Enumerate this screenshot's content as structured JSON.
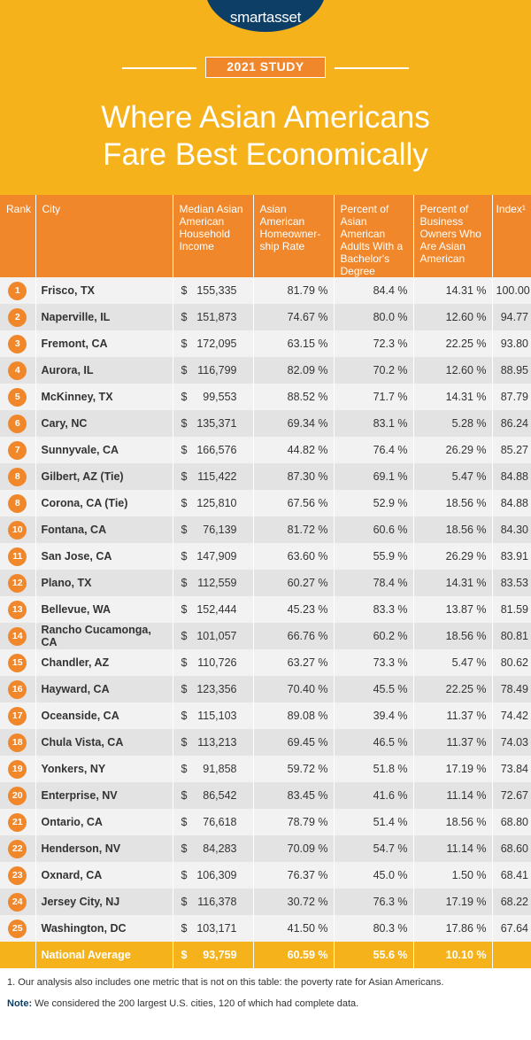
{
  "header": {
    "logo": "smartasset",
    "study_label": "2021 STUDY",
    "title_line1": "Where Asian Americans",
    "title_line2": "Fare Best Economically"
  },
  "colors": {
    "header_bg": "#f6b21a",
    "accent": "#f1872b",
    "logo_bg": "#0d3e66"
  },
  "chart_data": {
    "type": "table",
    "title": "Where Asian Americans Fare Best Economically",
    "columns": [
      "Rank",
      "City",
      "Median Asian American Household Income",
      "Asian American Homeowner-ship Rate",
      "Percent of Asian American Adults With a Bachelor's Degree",
      "Percent of Business Owners Who Are Asian American",
      "Index¹"
    ],
    "rows": [
      {
        "rank": "1",
        "city": "Frisco, TX",
        "income": "155,335",
        "home": "81.79 %",
        "bach": "84.4 %",
        "biz": "14.31 %",
        "index": "100.00"
      },
      {
        "rank": "2",
        "city": "Naperville, IL",
        "income": "151,873",
        "home": "74.67 %",
        "bach": "80.0 %",
        "biz": "12.60 %",
        "index": "94.77"
      },
      {
        "rank": "3",
        "city": "Fremont, CA",
        "income": "172,095",
        "home": "63.15 %",
        "bach": "72.3 %",
        "biz": "22.25 %",
        "index": "93.80"
      },
      {
        "rank": "4",
        "city": "Aurora, IL",
        "income": "116,799",
        "home": "82.09 %",
        "bach": "70.2 %",
        "biz": "12.60 %",
        "index": "88.95"
      },
      {
        "rank": "5",
        "city": "McKinney, TX",
        "income": "99,553",
        "home": "88.52 %",
        "bach": "71.7 %",
        "biz": "14.31 %",
        "index": "87.79"
      },
      {
        "rank": "6",
        "city": "Cary, NC",
        "income": "135,371",
        "home": "69.34 %",
        "bach": "83.1 %",
        "biz": "5.28 %",
        "index": "86.24"
      },
      {
        "rank": "7",
        "city": "Sunnyvale, CA",
        "income": "166,576",
        "home": "44.82 %",
        "bach": "76.4 %",
        "biz": "26.29 %",
        "index": "85.27"
      },
      {
        "rank": "8",
        "city": "Gilbert, AZ (Tie)",
        "income": "115,422",
        "home": "87.30 %",
        "bach": "69.1 %",
        "biz": "5.47 %",
        "index": "84.88"
      },
      {
        "rank": "8",
        "city": "Corona, CA (Tie)",
        "income": "125,810",
        "home": "67.56 %",
        "bach": "52.9 %",
        "biz": "18.56 %",
        "index": "84.88"
      },
      {
        "rank": "10",
        "city": "Fontana, CA",
        "income": "76,139",
        "home": "81.72 %",
        "bach": "60.6 %",
        "biz": "18.56 %",
        "index": "84.30"
      },
      {
        "rank": "11",
        "city": "San Jose, CA",
        "income": "147,909",
        "home": "63.60 %",
        "bach": "55.9 %",
        "biz": "26.29 %",
        "index": "83.91"
      },
      {
        "rank": "12",
        "city": "Plano, TX",
        "income": "112,559",
        "home": "60.27 %",
        "bach": "78.4 %",
        "biz": "14.31 %",
        "index": "83.53"
      },
      {
        "rank": "13",
        "city": "Bellevue, WA",
        "income": "152,444",
        "home": "45.23 %",
        "bach": "83.3 %",
        "biz": "13.87 %",
        "index": "81.59"
      },
      {
        "rank": "14",
        "city": "Rancho Cucamonga, CA",
        "income": "101,057",
        "home": "66.76 %",
        "bach": "60.2 %",
        "biz": "18.56 %",
        "index": "80.81"
      },
      {
        "rank": "15",
        "city": "Chandler, AZ",
        "income": "110,726",
        "home": "63.27 %",
        "bach": "73.3 %",
        "biz": "5.47 %",
        "index": "80.62"
      },
      {
        "rank": "16",
        "city": "Hayward, CA",
        "income": "123,356",
        "home": "70.40 %",
        "bach": "45.5 %",
        "biz": "22.25 %",
        "index": "78.49"
      },
      {
        "rank": "17",
        "city": "Oceanside, CA",
        "income": "115,103",
        "home": "89.08 %",
        "bach": "39.4 %",
        "biz": "11.37 %",
        "index": "74.42"
      },
      {
        "rank": "18",
        "city": "Chula Vista, CA",
        "income": "113,213",
        "home": "69.45 %",
        "bach": "46.5 %",
        "biz": "11.37 %",
        "index": "74.03"
      },
      {
        "rank": "19",
        "city": "Yonkers, NY",
        "income": "91,858",
        "home": "59.72 %",
        "bach": "51.8 %",
        "biz": "17.19 %",
        "index": "73.84"
      },
      {
        "rank": "20",
        "city": "Enterprise, NV",
        "income": "86,542",
        "home": "83.45 %",
        "bach": "41.6 %",
        "biz": "11.14 %",
        "index": "72.67"
      },
      {
        "rank": "21",
        "city": "Ontario, CA",
        "income": "76,618",
        "home": "78.79 %",
        "bach": "51.4 %",
        "biz": "18.56 %",
        "index": "68.80"
      },
      {
        "rank": "22",
        "city": "Henderson, NV",
        "income": "84,283",
        "home": "70.09 %",
        "bach": "54.7 %",
        "biz": "11.14 %",
        "index": "68.60"
      },
      {
        "rank": "23",
        "city": "Oxnard, CA",
        "income": "106,309",
        "home": "76.37 %",
        "bach": "45.0 %",
        "biz": "1.50 %",
        "index": "68.41"
      },
      {
        "rank": "24",
        "city": "Jersey City, NJ",
        "income": "116,378",
        "home": "30.72 %",
        "bach": "76.3 %",
        "biz": "17.19 %",
        "index": "68.22"
      },
      {
        "rank": "25",
        "city": "Washington, DC",
        "income": "103,171",
        "home": "41.50 %",
        "bach": "80.3 %",
        "biz": "17.86 %",
        "index": "67.64"
      }
    ],
    "national_average": {
      "label": "National Average",
      "income": "93,759",
      "home": "60.59 %",
      "bach": "55.6 %",
      "biz": "10.10 %"
    }
  },
  "currency_symbol": "$",
  "footnotes": {
    "note1": "1.  Our analysis also includes one metric that is not on this table: the poverty rate for Asian Americans.",
    "note_label": "Note:",
    "note_text": " We considered the 200 largest U.S. cities, 120 of which had complete data."
  }
}
